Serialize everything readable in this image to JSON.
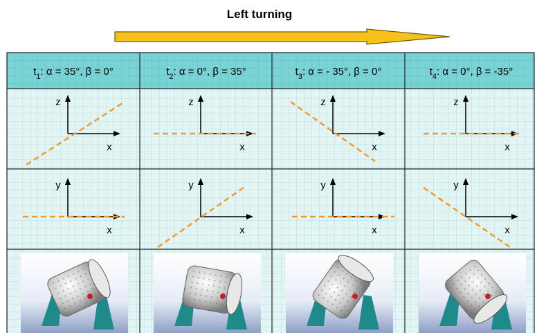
{
  "title": "Left turning",
  "columns": [
    {
      "header": {
        "t": "t",
        "sub": "1",
        "rest": ": α = 35°,  β = 0°"
      },
      "xz": {
        "v": "z",
        "h": "x"
      },
      "xy": {
        "v": "y",
        "h": "x"
      }
    },
    {
      "header": {
        "t": "t",
        "sub": "2",
        "rest": ": α = 0°,  β = 35°"
      },
      "xz": {
        "v": "z",
        "h": "x"
      },
      "xy": {
        "v": "y",
        "h": "x"
      }
    },
    {
      "header": {
        "t": "t",
        "sub": "3",
        "rest": ": α = - 35°,  β = 0°"
      },
      "xz": {
        "v": "z",
        "h": "x"
      },
      "xy": {
        "v": "y",
        "h": "x"
      }
    },
    {
      "header": {
        "t": "t",
        "sub": "4",
        "rest": ": α = 0°,  β = -35°"
      },
      "xz": {
        "v": "z",
        "h": "x"
      },
      "xy": {
        "v": "y",
        "h": "x"
      }
    }
  ]
}
